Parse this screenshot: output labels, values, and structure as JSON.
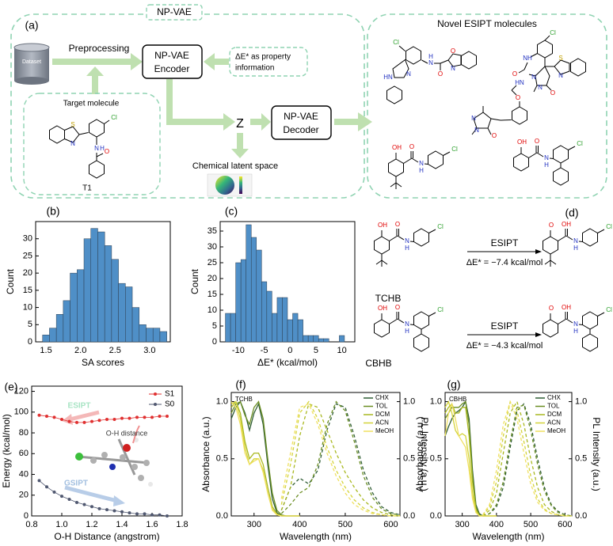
{
  "panel_a": {
    "label": "(a)",
    "framework_title": "NP-VAE",
    "dataset": "Dataset",
    "preprocessing": "Preprocessing",
    "encoder": [
      "NP-VAE",
      "Encoder"
    ],
    "property": [
      "ΔE* as property",
      "information"
    ],
    "target_title": "Target molecule",
    "target_name": "T1",
    "target_atoms": [
      "S",
      "N",
      "Cl",
      "N",
      "H",
      "O"
    ],
    "latent": "Z",
    "decoder": [
      "NP-VAE",
      "Decoder"
    ],
    "latent_space": "Chemical latent space",
    "novel_title": "Novel ESIPT molecules",
    "novel_atoms": [
      [
        "Cl",
        "N",
        "H",
        "O",
        "O",
        "N",
        "HN",
        "N"
      ],
      [
        "Cl",
        "NH",
        "O",
        "S",
        "N",
        "N",
        "O",
        "N"
      ],
      [
        "O",
        "HN",
        "N",
        "N",
        "O"
      ],
      [
        "OH",
        "O",
        "N",
        "H",
        "Cl"
      ],
      [
        "OH",
        "O",
        "N",
        "H",
        "Cl"
      ]
    ]
  },
  "panel_d": {
    "label": "(d)",
    "reactions": [
      {
        "reactant_atoms": [
          "OH",
          "O",
          "N",
          "H",
          "Cl"
        ],
        "product_atoms": [
          "O",
          "OH",
          "N",
          "H",
          "Cl"
        ],
        "arrow_label": "ESIPT",
        "energy": "ΔE* = −7.4 kcal/mol",
        "name": "TCHB"
      },
      {
        "reactant_atoms": [
          "OH",
          "O",
          "N",
          "H",
          "Cl"
        ],
        "product_atoms": [
          "O",
          "OH",
          "N",
          "H",
          "Cl"
        ],
        "arrow_label": "ESIPT",
        "energy": "ΔE* = −4.3 kcal/mol",
        "name": "CBHB"
      }
    ]
  },
  "chart_data": [
    {
      "type": "histogram",
      "panel_label": "(b)",
      "x_label": "SA scores",
      "y_label": "Count",
      "color": "#4f8fc7",
      "bins": [
        1.45,
        1.55,
        1.65,
        1.75,
        1.85,
        1.95,
        2.05,
        2.15,
        2.25,
        2.35,
        2.45,
        2.55,
        2.65,
        2.75,
        2.85,
        2.95,
        3.05,
        3.15,
        3.25
      ],
      "values": [
        2,
        4,
        8,
        12,
        20,
        21,
        30,
        33,
        32,
        28,
        24,
        17,
        16,
        10,
        5,
        4,
        4,
        3
      ],
      "xlim": [
        1.35,
        3.3
      ],
      "xticks": [
        1.5,
        {
          "value": 2,
          "label": "2.0"
        },
        2.5,
        {
          "value": 3,
          "label": "3.0"
        }
      ],
      "ylim": [
        0,
        35
      ],
      "yticks": [
        0,
        5,
        10,
        15,
        20,
        25,
        30
      ]
    },
    {
      "type": "histogram",
      "panel_label": "(c)",
      "x_label": "ΔE* (kcal/mol)",
      "y_label": "Count",
      "color": "#4f8fc7",
      "bins": [
        -12.5,
        -11.5,
        -10.5,
        -9.5,
        -8.5,
        -7.5,
        -6.5,
        -5.5,
        -4.5,
        -3.5,
        -2.5,
        -1.5,
        -0.5,
        0.5,
        1.5,
        2.5,
        3.5,
        4.5,
        5.5,
        6.5,
        7.5,
        8.5,
        9.5,
        10.5,
        11.5
      ],
      "values": [
        9,
        9,
        25,
        26,
        37,
        33,
        29,
        19,
        16,
        9,
        14,
        14,
        7,
        9,
        7,
        2,
        2,
        2,
        1,
        1,
        0,
        0,
        2,
        0
      ],
      "xlim": [
        -13.5,
        12.5
      ],
      "xticks": [
        -10,
        -5,
        0,
        5,
        10
      ],
      "ylim": [
        0,
        38
      ],
      "yticks": [
        0,
        5,
        10,
        15,
        20,
        25,
        30,
        35
      ]
    },
    {
      "type": "line",
      "panel_label": "(e)",
      "x_label": "O-H Distance (angstrom)",
      "y_label": "Energy (kcal/mol)",
      "legend": "upper right",
      "annotations": [
        "ESIPT",
        "O-H distance",
        "GSIPT"
      ],
      "x": [
        0.85,
        0.9,
        0.95,
        1.0,
        1.05,
        1.1,
        1.15,
        1.2,
        1.25,
        1.3,
        1.35,
        1.4,
        1.45,
        1.5,
        1.55,
        1.6,
        1.65,
        1.7
      ],
      "series": [
        {
          "name": "S1",
          "color": "#e03030",
          "values": [
            97,
            96,
            95,
            93,
            91,
            90,
            90,
            91,
            92,
            93,
            93,
            94,
            94,
            95,
            95,
            95,
            96,
            96
          ]
        },
        {
          "name": "S0",
          "color": "#505870",
          "values": [
            34,
            28,
            23,
            19,
            16,
            13,
            11,
            9,
            7,
            6,
            5,
            4,
            3,
            2,
            2,
            1,
            1,
            0
          ]
        }
      ],
      "xlim": [
        0.8,
        1.8
      ],
      "xticks": [
        0.8,
        {
          "value": 1,
          "label": "1.0"
        },
        1.2,
        1.4,
        1.6,
        1.8
      ],
      "ylim": [
        0,
        125
      ],
      "yticks": [
        0,
        20,
        40,
        60,
        80,
        100,
        120
      ]
    },
    {
      "type": "spectrum",
      "panel_label": "(f)",
      "inset_label": "TCHB",
      "x_label": "Wavelength (nm)",
      "y_label": "Absorbance (a.u.)",
      "y2_label": "PL Intensity (a.u.)",
      "legend": "upper right",
      "abs_x": [
        250,
        260,
        270,
        280,
        290,
        300,
        310,
        320,
        330,
        340,
        350,
        360,
        370,
        380,
        390,
        400
      ],
      "pl_x": [
        360,
        380,
        400,
        420,
        440,
        460,
        480,
        500,
        520,
        540,
        560,
        580,
        600,
        620
      ],
      "series": [
        {
          "name": "CHX",
          "color": "#2f5d34",
          "absorbance": [
            0.85,
            0.95,
            1.0,
            0.9,
            0.75,
            0.9,
            0.98,
            0.8,
            0.45,
            0.15,
            0.03,
            0,
            0,
            0,
            0,
            0
          ],
          "pl": [
            0.05,
            0.25,
            0.33,
            0.28,
            0.4,
            0.75,
            0.98,
            0.95,
            0.7,
            0.4,
            0.2,
            0.08,
            0.03,
            0.01
          ]
        },
        {
          "name": "TOL",
          "color": "#6b8e23",
          "absorbance": [
            0.9,
            0.98,
            1.0,
            0.88,
            0.8,
            0.95,
            1.0,
            0.85,
            0.5,
            0.2,
            0.05,
            0.01,
            0,
            0,
            0,
            0
          ],
          "pl": [
            0.02,
            0.1,
            0.2,
            0.25,
            0.45,
            0.8,
            1.0,
            0.92,
            0.65,
            0.35,
            0.16,
            0.06,
            0.02,
            0.01
          ]
        },
        {
          "name": "DCM",
          "color": "#a9b820",
          "absorbance": [
            0.95,
            1.0,
            0.9,
            0.65,
            0.5,
            0.55,
            0.55,
            0.45,
            0.25,
            0.08,
            0.02,
            0,
            0,
            0,
            0,
            0
          ],
          "pl": [
            0.05,
            0.25,
            0.7,
            0.98,
            0.95,
            0.75,
            0.55,
            0.38,
            0.25,
            0.14,
            0.07,
            0.03,
            0.01,
            0
          ]
        },
        {
          "name": "ACN",
          "color": "#d4d43a",
          "absorbance": [
            0.98,
            1.0,
            0.85,
            0.6,
            0.45,
            0.5,
            0.5,
            0.4,
            0.2,
            0.06,
            0.01,
            0,
            0,
            0,
            0,
            0
          ],
          "pl": [
            0.1,
            0.45,
            0.9,
            1.0,
            0.85,
            0.6,
            0.4,
            0.25,
            0.14,
            0.07,
            0.03,
            0.01,
            0,
            0
          ]
        },
        {
          "name": "MeOH",
          "color": "#f0e060",
          "absorbance": [
            1.0,
            0.95,
            0.8,
            0.55,
            0.45,
            0.48,
            0.5,
            0.38,
            0.2,
            0.05,
            0.01,
            0,
            0,
            0,
            0,
            0
          ],
          "pl": [
            0.15,
            0.55,
            0.95,
            0.98,
            0.8,
            0.55,
            0.35,
            0.2,
            0.1,
            0.05,
            0.02,
            0.01,
            0,
            0
          ]
        }
      ],
      "xlim": [
        250,
        620
      ],
      "xticks": [
        300,
        400,
        500,
        600
      ],
      "ylim": [
        0,
        1.08
      ],
      "yticks": [
        {
          "value": 0,
          "label": "0.0"
        },
        0.5,
        {
          "value": 1,
          "label": "1.0"
        }
      ],
      "y2lim": [
        0,
        1.08
      ],
      "y2ticks": [
        {
          "value": 0,
          "label": "0.0"
        },
        0.5,
        {
          "value": 1,
          "label": "1.0"
        }
      ]
    },
    {
      "type": "spectrum",
      "panel_label": "(g)",
      "inset_label": "CBHB",
      "x_label": "Wavelength (nm)",
      "y_label": "Absorbance (a.u.)",
      "y2_label": "PL Intensity (a.u.)",
      "legend": "upper right",
      "abs_x": [
        250,
        260,
        270,
        280,
        290,
        300,
        310,
        320,
        330,
        340,
        350,
        360,
        370,
        380,
        390,
        400
      ],
      "pl_x": [
        360,
        380,
        400,
        420,
        440,
        460,
        480,
        500,
        520,
        540,
        560,
        580,
        600,
        620
      ],
      "series": [
        {
          "name": "CHX",
          "color": "#2f5d34",
          "absorbance": [
            0.7,
            0.78,
            0.85,
            0.9,
            0.92,
            0.95,
            1.0,
            0.85,
            0.4,
            0.1,
            0.02,
            0,
            0,
            0,
            0,
            0
          ],
          "pl": [
            0,
            0.02,
            0.08,
            0.25,
            0.6,
            0.92,
            0.98,
            0.8,
            0.5,
            0.25,
            0.1,
            0.04,
            0.01,
            0
          ]
        },
        {
          "name": "TOL",
          "color": "#6b8e23",
          "absorbance": [
            0.85,
            0.9,
            0.95,
            0.95,
            0.95,
            0.98,
            1.0,
            0.8,
            0.35,
            0.08,
            0.01,
            0,
            0,
            0,
            0,
            0
          ],
          "pl": [
            0,
            0.02,
            0.1,
            0.3,
            0.65,
            0.95,
            0.97,
            0.75,
            0.45,
            0.22,
            0.09,
            0.03,
            0.01,
            0
          ]
        },
        {
          "name": "DCM",
          "color": "#a9b820",
          "absorbance": [
            0.9,
            0.95,
            0.98,
            0.9,
            0.9,
            0.95,
            0.95,
            0.7,
            0.3,
            0.06,
            0,
            0,
            0,
            0,
            0,
            0
          ],
          "pl": [
            0,
            0.05,
            0.2,
            0.55,
            0.9,
            1.0,
            0.8,
            0.5,
            0.25,
            0.1,
            0.04,
            0.01,
            0,
            0
          ]
        },
        {
          "name": "ACN",
          "color": "#d4d43a",
          "absorbance": [
            0.95,
            1.0,
            0.9,
            0.75,
            0.7,
            0.72,
            0.7,
            0.5,
            0.2,
            0.04,
            0,
            0,
            0,
            0,
            0,
            0
          ],
          "pl": [
            0,
            0.08,
            0.3,
            0.7,
            1.0,
            0.92,
            0.65,
            0.35,
            0.15,
            0.06,
            0.02,
            0.01,
            0,
            0
          ]
        },
        {
          "name": "MeOH",
          "color": "#f0e060",
          "absorbance": [
            0.7,
            0.9,
            0.98,
            0.85,
            0.7,
            0.65,
            0.6,
            0.4,
            0.15,
            0.03,
            0,
            0,
            0,
            0,
            0,
            0
          ],
          "pl": [
            0.01,
            0.1,
            0.4,
            0.8,
            1.0,
            0.85,
            0.55,
            0.28,
            0.12,
            0.05,
            0.02,
            0.01,
            0,
            0
          ]
        }
      ],
      "xlim": [
        250,
        620
      ],
      "xticks": [
        300,
        400,
        500,
        600
      ],
      "ylim": [
        0,
        1.08
      ],
      "yticks": [
        {
          "value": 0,
          "label": "0.0"
        },
        0.5,
        {
          "value": 1,
          "label": "1.0"
        }
      ],
      "y2lim": [
        0,
        1.08
      ],
      "y2ticks": [
        {
          "value": 0,
          "label": "0.0"
        },
        0.5,
        {
          "value": 1,
          "label": "1.0"
        }
      ]
    }
  ]
}
